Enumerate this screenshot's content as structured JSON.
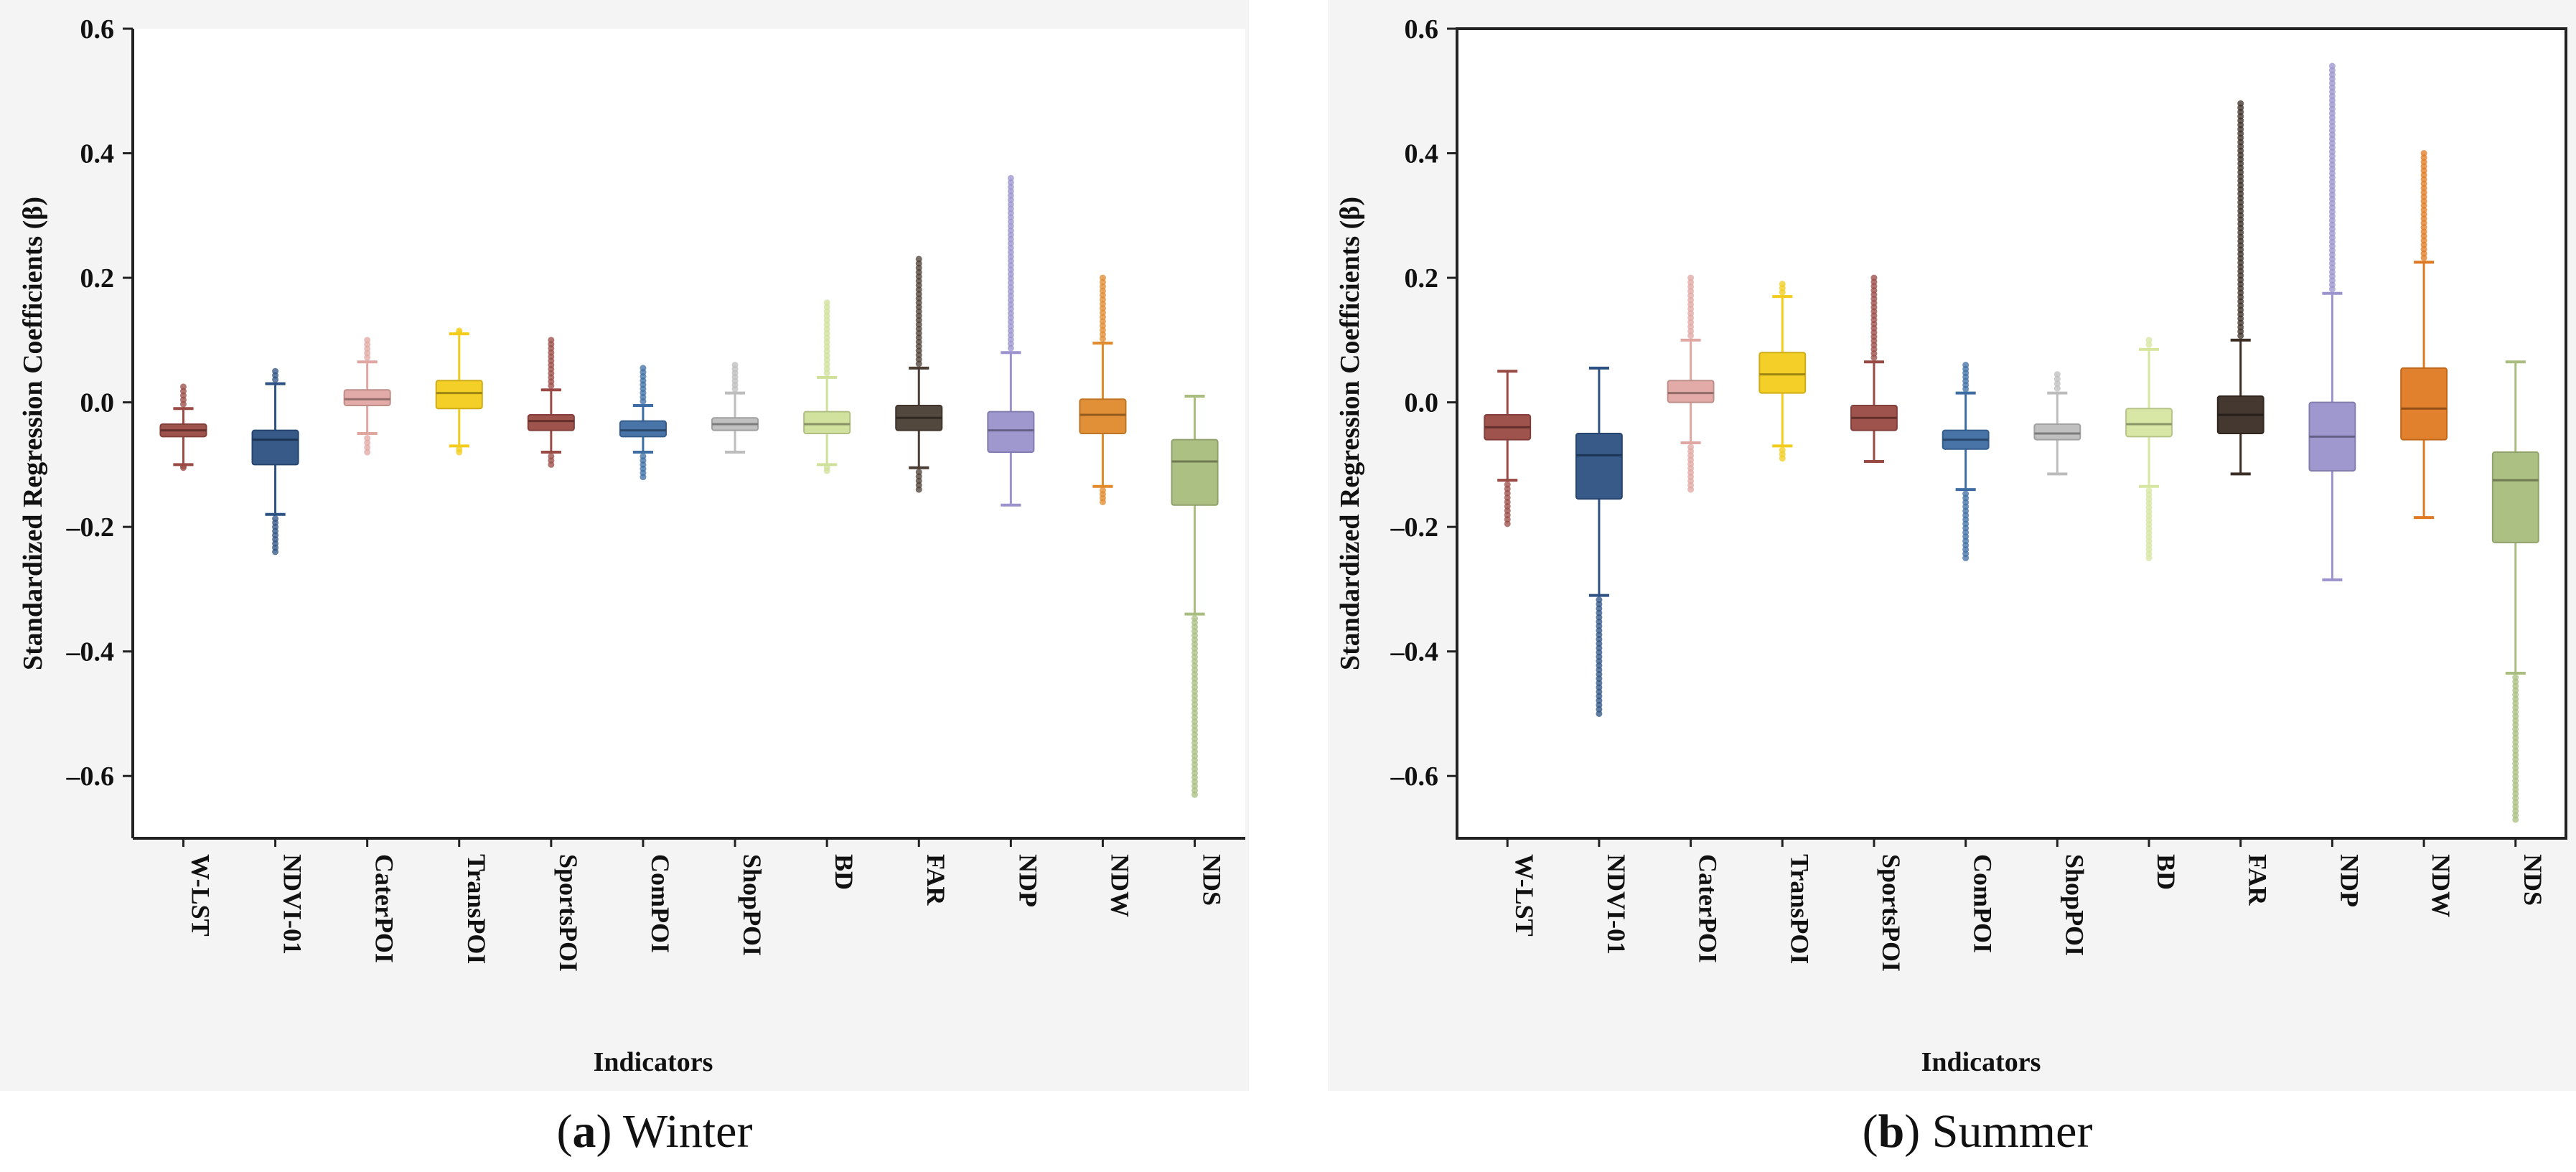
{
  "chart_data": [
    {
      "type": "box",
      "caption_letter": "a",
      "caption_title": "Winter",
      "xlabel": "Indicators",
      "ylabel": "Standardized Regression Coefficients (β)",
      "ylim": [
        -0.7,
        0.6
      ],
      "yticks": [
        0.6,
        0.4,
        0.2,
        0.0,
        -0.2,
        -0.4,
        -0.6
      ],
      "ytick_labels": [
        "0.6",
        "0.4",
        "0.2",
        "0.0",
        "–0.2",
        "–0.4",
        "–0.6"
      ],
      "grid": false,
      "series": [
        {
          "name": "W-LST",
          "color": "#9a4a44",
          "q1": -0.055,
          "median": -0.045,
          "q3": -0.035,
          "whisker_low": -0.1,
          "whisker_high": -0.01,
          "outliers_low": [
            -0.105
          ],
          "outliers_high": [
            0.0,
            0.015,
            0.025
          ]
        },
        {
          "name": "NDVI-01",
          "color": "#2c5182",
          "q1": -0.1,
          "median": -0.06,
          "q3": -0.045,
          "whisker_low": -0.18,
          "whisker_high": 0.03,
          "outliers_low": [
            -0.19,
            -0.2,
            -0.21,
            -0.22,
            -0.23,
            -0.24
          ],
          "outliers_high": [
            0.04,
            0.05
          ]
        },
        {
          "name": "CaterPOI",
          "color": "#e0a7a2",
          "q1": -0.005,
          "median": 0.005,
          "q3": 0.02,
          "whisker_low": -0.05,
          "whisker_high": 0.065,
          "outliers_low": [
            -0.06,
            -0.07,
            -0.08
          ],
          "outliers_high": [
            0.08,
            0.09,
            0.1
          ]
        },
        {
          "name": "TransPOI",
          "color": "#f2cc1c",
          "q1": -0.01,
          "median": 0.015,
          "q3": 0.035,
          "whisker_low": -0.07,
          "whisker_high": 0.11,
          "outliers_low": [
            -0.08
          ],
          "outliers_high": [
            0.115
          ]
        },
        {
          "name": "SportsPOI",
          "color": "#9a4a44",
          "q1": -0.045,
          "median": -0.03,
          "q3": -0.02,
          "whisker_low": -0.08,
          "whisker_high": 0.02,
          "outliers_low": [
            -0.09,
            -0.1
          ],
          "outliers_high": [
            0.04,
            0.05,
            0.06,
            0.07,
            0.08,
            0.09,
            0.1
          ]
        },
        {
          "name": "ComPOI",
          "color": "#3e6da3",
          "q1": -0.055,
          "median": -0.045,
          "q3": -0.03,
          "whisker_low": -0.08,
          "whisker_high": -0.005,
          "outliers_low": [
            -0.09,
            -0.1,
            -0.11,
            -0.12
          ],
          "outliers_high": [
            0.01,
            0.025,
            0.04,
            0.055
          ]
        },
        {
          "name": "ShopPOI",
          "color": "#bdbdbd",
          "q1": -0.045,
          "median": -0.035,
          "q3": -0.025,
          "whisker_low": -0.08,
          "whisker_high": 0.015,
          "outliers_low": [],
          "outliers_high": [
            0.03,
            0.045,
            0.06
          ]
        },
        {
          "name": "BD",
          "color": "#cfe09a",
          "q1": -0.05,
          "median": -0.035,
          "q3": -0.015,
          "whisker_low": -0.1,
          "whisker_high": 0.04,
          "outliers_low": [
            -0.11
          ],
          "outliers_high": [
            0.06,
            0.08,
            0.1,
            0.12,
            0.14,
            0.16
          ]
        },
        {
          "name": "FAR",
          "color": "#4a3e34",
          "q1": -0.045,
          "median": -0.025,
          "q3": -0.005,
          "whisker_low": -0.105,
          "whisker_high": 0.055,
          "outliers_low": [
            -0.12,
            -0.13,
            -0.14
          ],
          "outliers_high": [
            0.07,
            0.09,
            0.11,
            0.13,
            0.15,
            0.17,
            0.19,
            0.21,
            0.23
          ]
        },
        {
          "name": "NDP",
          "color": "#9a93cc",
          "q1": -0.08,
          "median": -0.045,
          "q3": -0.015,
          "whisker_low": -0.165,
          "whisker_high": 0.08,
          "outliers_low": [],
          "outliers_high": [
            0.1,
            0.13,
            0.16,
            0.19,
            0.22,
            0.25,
            0.28,
            0.31,
            0.34,
            0.36
          ]
        },
        {
          "name": "NDW",
          "color": "#e08a2c",
          "q1": -0.05,
          "median": -0.02,
          "q3": 0.005,
          "whisker_low": -0.135,
          "whisker_high": 0.095,
          "outliers_low": [
            -0.14,
            -0.15,
            -0.16
          ],
          "outliers_high": [
            0.11,
            0.13,
            0.15,
            0.17,
            0.19,
            0.2
          ]
        },
        {
          "name": "NDS",
          "color": "#a9bd7e",
          "q1": -0.165,
          "median": -0.095,
          "q3": -0.06,
          "whisker_low": -0.34,
          "whisker_high": 0.01,
          "outliers_low": [
            -0.36,
            -0.39,
            -0.42,
            -0.45,
            -0.48,
            -0.51,
            -0.54,
            -0.57,
            -0.6,
            -0.63
          ],
          "outliers_high": []
        }
      ]
    },
    {
      "type": "box",
      "caption_letter": "b",
      "caption_title": "Summer",
      "xlabel": "Indicators",
      "ylabel": "Standardized Regression Coefficients (β)",
      "ylim": [
        -0.7,
        0.6
      ],
      "yticks": [
        0.6,
        0.4,
        0.2,
        0.0,
        -0.2,
        -0.4,
        -0.6
      ],
      "ytick_labels": [
        "0.6",
        "0.4",
        "0.2",
        "0.0",
        "–0.2",
        "–0.4",
        "–0.6"
      ],
      "grid": false,
      "series": [
        {
          "name": "W-LST",
          "color": "#9a4a44",
          "q1": -0.06,
          "median": -0.04,
          "q3": -0.02,
          "whisker_low": -0.125,
          "whisker_high": 0.05,
          "outliers_low": [
            -0.14,
            -0.16,
            -0.18,
            -0.195
          ],
          "outliers_high": []
        },
        {
          "name": "NDVI-01",
          "color": "#2c5182",
          "q1": -0.155,
          "median": -0.085,
          "q3": -0.05,
          "whisker_low": -0.31,
          "whisker_high": 0.055,
          "outliers_low": [
            -0.33,
            -0.36,
            -0.39,
            -0.42,
            -0.45,
            -0.48,
            -0.5
          ],
          "outliers_high": []
        },
        {
          "name": "CaterPOI",
          "color": "#e0a7a2",
          "q1": 0.0,
          "median": 0.015,
          "q3": 0.035,
          "whisker_low": -0.065,
          "whisker_high": 0.1,
          "outliers_low": [
            -0.08,
            -0.1,
            -0.12,
            -0.14
          ],
          "outliers_high": [
            0.12,
            0.14,
            0.16,
            0.18,
            0.2
          ]
        },
        {
          "name": "TransPOI",
          "color": "#f2cc1c",
          "q1": 0.015,
          "median": 0.045,
          "q3": 0.08,
          "whisker_low": -0.07,
          "whisker_high": 0.17,
          "outliers_low": [
            -0.08,
            -0.09
          ],
          "outliers_high": [
            0.18,
            0.19
          ]
        },
        {
          "name": "SportsPOI",
          "color": "#9a4a44",
          "q1": -0.045,
          "median": -0.025,
          "q3": -0.005,
          "whisker_low": -0.095,
          "whisker_high": 0.065,
          "outliers_low": [],
          "outliers_high": [
            0.08,
            0.1,
            0.12,
            0.14,
            0.16,
            0.18,
            0.2
          ]
        },
        {
          "name": "ComPOI",
          "color": "#3e6da3",
          "q1": -0.075,
          "median": -0.06,
          "q3": -0.045,
          "whisker_low": -0.14,
          "whisker_high": 0.015,
          "outliers_low": [
            -0.15,
            -0.17,
            -0.19,
            -0.21,
            -0.23,
            -0.25
          ],
          "outliers_high": [
            0.03,
            0.045,
            0.06
          ]
        },
        {
          "name": "ShopPOI",
          "color": "#bdbdbd",
          "q1": -0.06,
          "median": -0.05,
          "q3": -0.035,
          "whisker_low": -0.115,
          "whisker_high": 0.015,
          "outliers_low": [],
          "outliers_high": [
            0.03,
            0.045
          ]
        },
        {
          "name": "BD",
          "color": "#d6e6a0",
          "q1": -0.055,
          "median": -0.035,
          "q3": -0.01,
          "whisker_low": -0.135,
          "whisker_high": 0.085,
          "outliers_low": [
            -0.15,
            -0.17,
            -0.19,
            -0.21,
            -0.23,
            -0.25
          ],
          "outliers_high": [
            0.1
          ]
        },
        {
          "name": "FAR",
          "color": "#3a2e25",
          "q1": -0.05,
          "median": -0.02,
          "q3": 0.01,
          "whisker_low": -0.115,
          "whisker_high": 0.1,
          "outliers_low": [],
          "outliers_high": [
            0.12,
            0.15,
            0.18,
            0.21,
            0.24,
            0.27,
            0.3,
            0.33,
            0.36,
            0.39,
            0.42,
            0.45,
            0.48
          ]
        },
        {
          "name": "NDP",
          "color": "#9a93cc",
          "q1": -0.11,
          "median": -0.055,
          "q3": 0.0,
          "whisker_low": -0.285,
          "whisker_high": 0.175,
          "outliers_low": [],
          "outliers_high": [
            0.2,
            0.24,
            0.28,
            0.32,
            0.36,
            0.4,
            0.44,
            0.48,
            0.52,
            0.54
          ]
        },
        {
          "name": "NDW",
          "color": "#e07a22",
          "q1": -0.06,
          "median": -0.01,
          "q3": 0.055,
          "whisker_low": -0.185,
          "whisker_high": 0.225,
          "outliers_low": [],
          "outliers_high": [
            0.25,
            0.28,
            0.31,
            0.34,
            0.37,
            0.4
          ]
        },
        {
          "name": "NDS",
          "color": "#a9bd7e",
          "q1": -0.225,
          "median": -0.125,
          "q3": -0.08,
          "whisker_low": -0.435,
          "whisker_high": 0.065,
          "outliers_low": [
            -0.46,
            -0.49,
            -0.52,
            -0.55,
            -0.58,
            -0.61,
            -0.64,
            -0.67
          ],
          "outliers_high": []
        }
      ]
    }
  ]
}
